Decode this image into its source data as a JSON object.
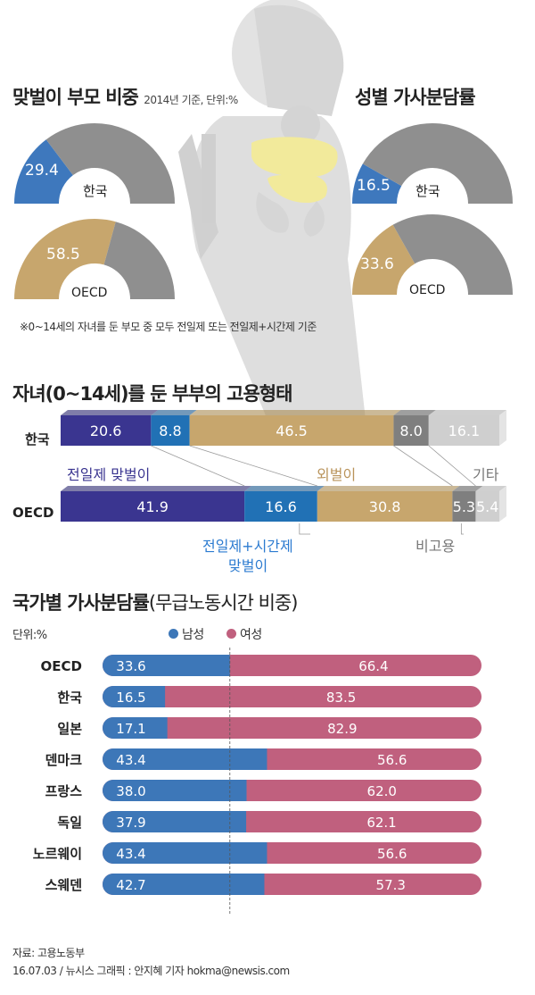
{
  "colors": {
    "dark_gray": "#8f8f8f",
    "blue": "#3e78bd",
    "tan": "#c7a66d",
    "navy": "#3a3590",
    "teal_blue": "#2171b5",
    "dark_slate": "#7f7f7f",
    "light_gray": "#cfcfcf",
    "male": "#3d77b8",
    "female": "#c0607e",
    "silhouette": "#dcdcdc",
    "baby_shirt": "#f2ea9b"
  },
  "section1": {
    "title": "맞벌이 부모 비중",
    "subtitle": "2014년 기준, 단위:%",
    "korea": {
      "label": "한국",
      "value": 29.4
    },
    "oecd": {
      "label": "OECD",
      "value": 58.5
    },
    "footnote": "※0~14세의 자녀를 둔 부모 중 모두 전일제 또는 전일제+시간제 기준"
  },
  "section2": {
    "title": "성별 가사분담률",
    "korea": {
      "label": "한국",
      "value": 16.5
    },
    "oecd": {
      "label": "OECD",
      "value": 33.6
    }
  },
  "section3": {
    "title": "자녀(0~14세)를 둔 부부의 고용형태",
    "rows": [
      {
        "label": "한국",
        "values": [
          20.6,
          8.8,
          46.5,
          8.0,
          16.1
        ]
      },
      {
        "label": "OECD",
        "values": [
          41.9,
          16.6,
          30.8,
          5.3,
          5.4
        ]
      }
    ],
    "legend": {
      "fulltime": "전일제 맞벌이",
      "single": "외벌이",
      "other": "기타",
      "parttime_line1": "전일제+시간제",
      "parttime_line2": "맞벌이",
      "unemployed": "비고용"
    }
  },
  "section4": {
    "title": "국가별 가사분담률",
    "title_paren": "(무급노동시간 비중)",
    "unit": "단위:%",
    "legend_male": "남성",
    "legend_female": "여성"
  },
  "chart_data": [
    {
      "type": "pie",
      "title": "맞벌이 부모 비중",
      "subtitle": "2014년 기준, 단위:%",
      "categories": [
        "한국",
        "OECD"
      ],
      "values": [
        29.4,
        58.5
      ]
    },
    {
      "type": "pie",
      "title": "성별 가사분담률",
      "categories": [
        "한국",
        "OECD"
      ],
      "values": [
        16.5,
        33.6
      ]
    },
    {
      "type": "bar",
      "title": "자녀(0~14세)를 둔 부부의 고용형태",
      "categories": [
        "한국",
        "OECD"
      ],
      "series": [
        {
          "name": "전일제 맞벌이",
          "values": [
            20.6,
            41.9
          ]
        },
        {
          "name": "전일제+시간제 맞벌이",
          "values": [
            8.8,
            16.6
          ]
        },
        {
          "name": "외벌이",
          "values": [
            46.5,
            30.8
          ]
        },
        {
          "name": "비고용",
          "values": [
            8.0,
            5.3
          ]
        },
        {
          "name": "기타",
          "values": [
            16.1,
            5.4
          ]
        }
      ]
    },
    {
      "type": "bar",
      "title": "국가별 가사분담률(무급노동시간 비중)",
      "ylabel": "단위:%",
      "categories": [
        "OECD",
        "한국",
        "일본",
        "덴마크",
        "프랑스",
        "독일",
        "노르웨이",
        "스웨덴"
      ],
      "series": [
        {
          "name": "남성",
          "values": [
            33.6,
            16.5,
            17.1,
            43.4,
            38.0,
            37.9,
            43.4,
            42.7
          ]
        },
        {
          "name": "여성",
          "values": [
            66.4,
            83.5,
            82.9,
            56.6,
            62.0,
            62.1,
            56.6,
            57.3
          ]
        }
      ]
    }
  ],
  "source": {
    "line1": "자료: 고용노동부",
    "line2": "16.07.03 / 뉴시스 그래픽 : 안지혜 기자 hokma@newsis.com"
  }
}
